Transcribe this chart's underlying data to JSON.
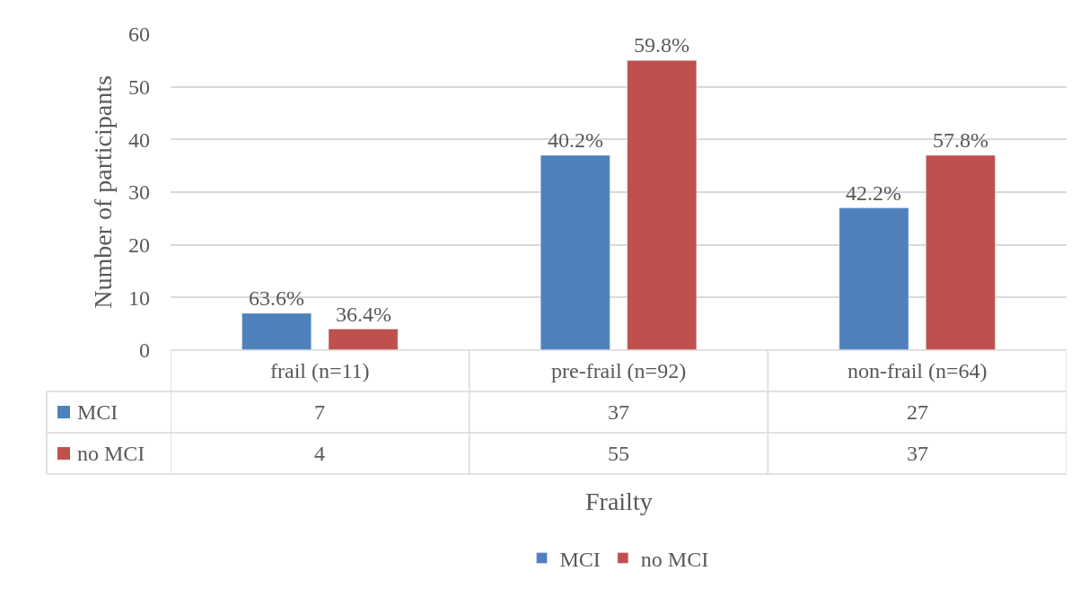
{
  "chart_data": {
    "type": "bar",
    "xlabel": "Frailty",
    "ylabel": "Number of participants",
    "categories": [
      "frail (n=11)",
      "pre-frail (n=92)",
      "non-frail (n=64)"
    ],
    "series": [
      {
        "name": "MCI",
        "color": "#4f81bd",
        "values": [
          7,
          37,
          27
        ]
      },
      {
        "name": "no MCI",
        "color": "#c0504d",
        "values": [
          4,
          55,
          37
        ]
      }
    ],
    "annotations": [
      "63.6%",
      "36.4%",
      "40.2%",
      "59.8%",
      "42.2%",
      "57.8%"
    ],
    "ylim": [
      0,
      60
    ],
    "yticks": [
      0,
      10,
      20,
      30,
      40,
      50,
      60
    ],
    "grid": "y",
    "legend": "bottom",
    "data_labels": true
  }
}
